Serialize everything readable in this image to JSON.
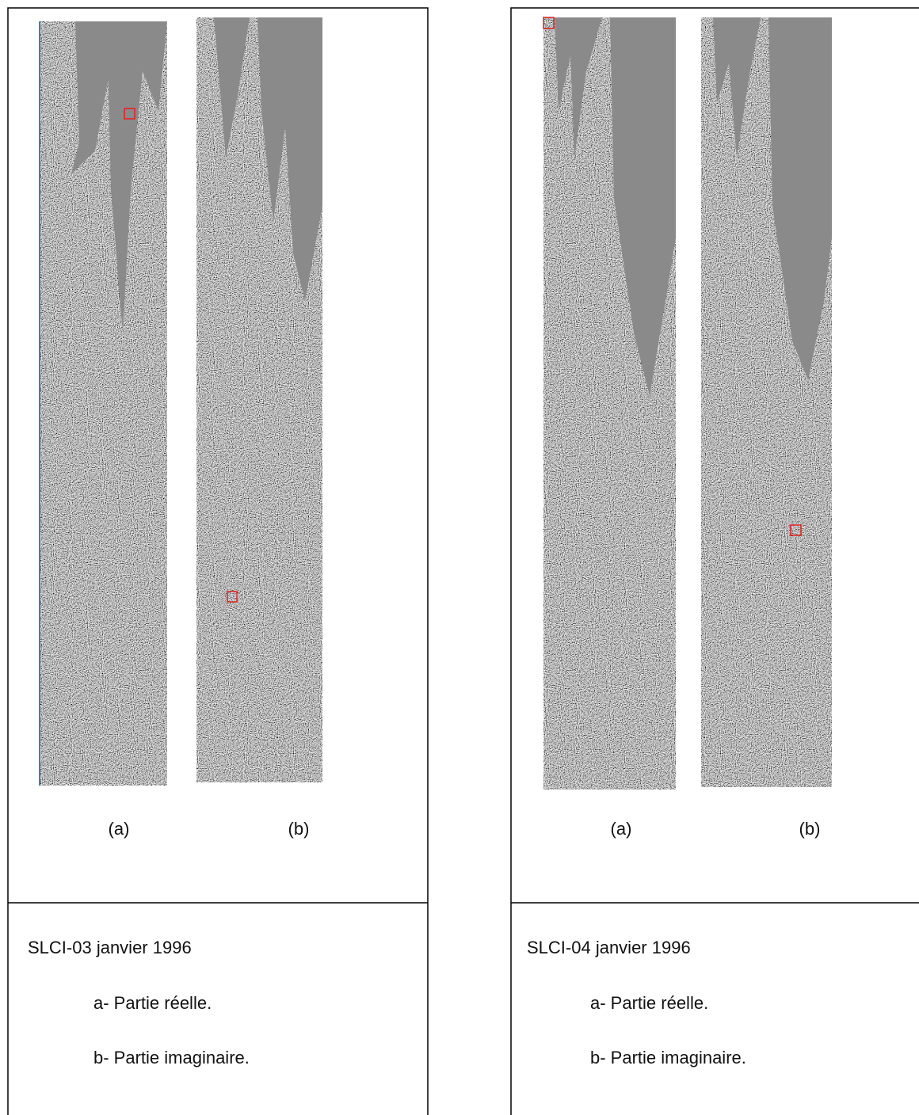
{
  "panels": [
    {
      "image_labels": [
        "(a)",
        "(b)"
      ],
      "caption": {
        "title": "SLCI-03 janvier 1996",
        "items": [
          "a- Partie réelle.",
          "b- Partie imaginaire."
        ]
      }
    },
    {
      "image_labels": [
        "(a)",
        "(b)"
      ],
      "caption": {
        "title": "SLCI-04 janvier 1996",
        "items": [
          "a- Partie réelle.",
          "b- Partie imaginaire."
        ]
      }
    }
  ]
}
